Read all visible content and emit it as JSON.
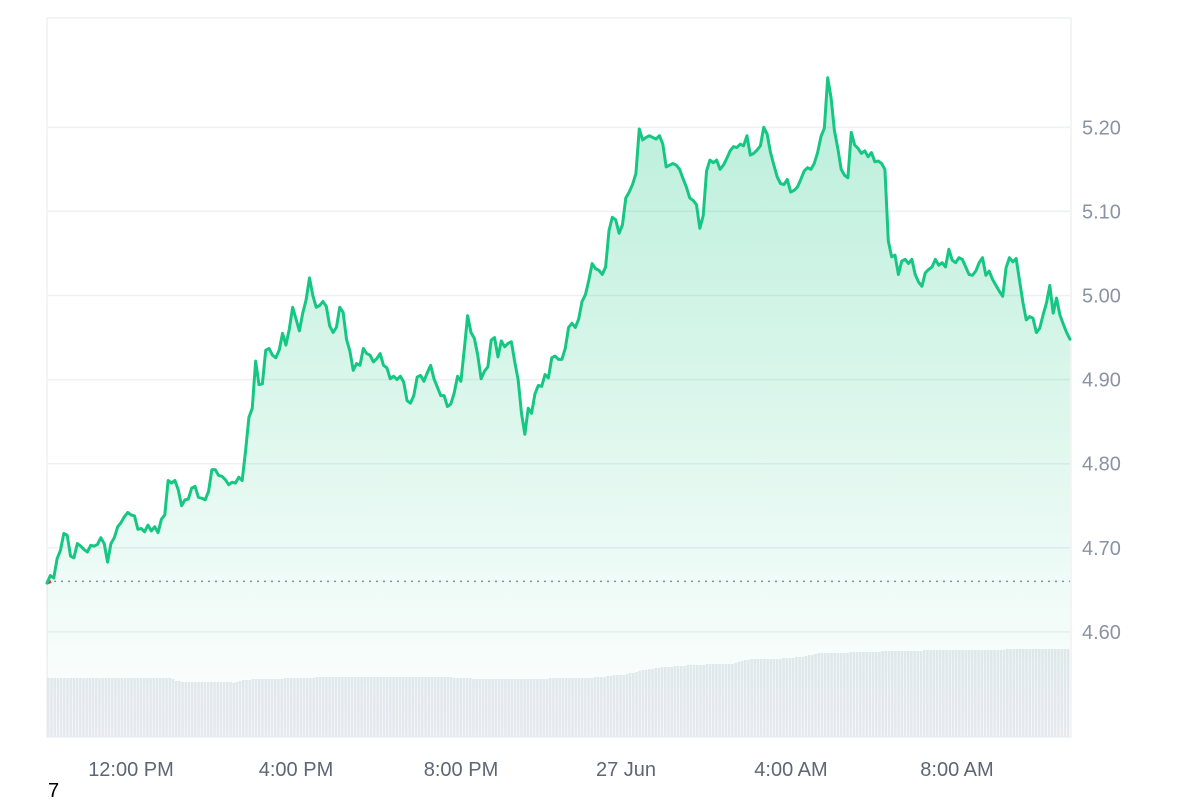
{
  "chart_data": {
    "type": "area",
    "x_tick_labels": [
      "12:00 PM",
      "4:00 PM",
      "8:00 PM",
      "27 Jun",
      "4:00 AM",
      "8:00 AM"
    ],
    "y_tick_labels": [
      "4.60",
      "4.70",
      "4.80",
      "4.90",
      "5.00",
      "5.10",
      "5.20"
    ],
    "ylim": [
      4.475,
      5.33
    ],
    "baseline": 4.66,
    "grid": true,
    "colors": {
      "line": "#16c784",
      "fill": "#16c784",
      "down": "#ea3943",
      "volume": "#e6e9ee",
      "grid": "#eef0f3",
      "baseline": "#8a8f98"
    },
    "price_series": {
      "name": "",
      "values": [
        4.658,
        4.667,
        4.664,
        4.687,
        4.697,
        4.717,
        4.715,
        4.69,
        4.688,
        4.705,
        4.702,
        4.698,
        4.695,
        4.703,
        4.702,
        4.704,
        4.712,
        4.705,
        4.683,
        4.705,
        4.712,
        4.725,
        4.73,
        4.737,
        4.742,
        4.739,
        4.738,
        4.722,
        4.723,
        4.719,
        4.727,
        4.72,
        4.725,
        4.718,
        4.734,
        4.739,
        4.78,
        4.777,
        4.78,
        4.769,
        4.75,
        4.757,
        4.758,
        4.771,
        4.773,
        4.76,
        4.759,
        4.757,
        4.767,
        4.793,
        4.793,
        4.786,
        4.785,
        4.781,
        4.775,
        4.778,
        4.777,
        4.784,
        4.78,
        4.815,
        4.855,
        4.866,
        4.922,
        4.894,
        4.895,
        4.935,
        4.937,
        4.929,
        4.926,
        4.935,
        4.955,
        4.941,
        4.96,
        4.986,
        4.972,
        4.958,
        4.979,
        4.995,
        5.021,
        5.0,
        4.986,
        4.988,
        4.993,
        4.987,
        4.964,
        4.956,
        4.962,
        4.986,
        4.98,
        4.948,
        4.934,
        4.911,
        4.919,
        4.917,
        4.937,
        4.931,
        4.929,
        4.921,
        4.925,
        4.931,
        4.917,
        4.914,
        4.901,
        4.904,
        4.9,
        4.904,
        4.897,
        4.875,
        4.872,
        4.881,
        4.903,
        4.905,
        4.898,
        4.908,
        4.917,
        4.901,
        4.891,
        4.881,
        4.881,
        4.868,
        4.871,
        4.884,
        4.904,
        4.898,
        4.936,
        4.976,
        4.956,
        4.949,
        4.929,
        4.901,
        4.91,
        4.915,
        4.947,
        4.95,
        4.927,
        4.946,
        4.939,
        4.943,
        4.945,
        4.921,
        4.9,
        4.86,
        4.835,
        4.866,
        4.86,
        4.883,
        4.893,
        4.892,
        4.906,
        4.902,
        4.926,
        4.928,
        4.924,
        4.924,
        4.937,
        4.962,
        4.967,
        4.962,
        4.972,
        4.993,
        5.001,
        5.018,
        5.038,
        5.032,
        5.03,
        5.025,
        5.034,
        5.077,
        5.093,
        5.09,
        5.074,
        5.084,
        5.116,
        5.123,
        5.132,
        5.145,
        5.198,
        5.185,
        5.188,
        5.19,
        5.188,
        5.186,
        5.19,
        5.18,
        5.153,
        5.155,
        5.157,
        5.155,
        5.15,
        5.139,
        5.129,
        5.116,
        5.113,
        5.108,
        5.08,
        5.095,
        5.148,
        5.161,
        5.158,
        5.161,
        5.15,
        5.155,
        5.163,
        5.172,
        5.177,
        5.176,
        5.18,
        5.178,
        5.19,
        5.167,
        5.169,
        5.173,
        5.178,
        5.2,
        5.192,
        5.17,
        5.155,
        5.141,
        5.133,
        5.132,
        5.138,
        5.123,
        5.125,
        5.129,
        5.138,
        5.148,
        5.152,
        5.15,
        5.157,
        5.17,
        5.189,
        5.199,
        5.259,
        5.235,
        5.196,
        5.175,
        5.15,
        5.143,
        5.14,
        5.194,
        5.179,
        5.175,
        5.169,
        5.172,
        5.165,
        5.17,
        5.159,
        5.16,
        5.157,
        5.15,
        5.065,
        5.046,
        5.048,
        5.025,
        5.041,
        5.043,
        5.038,
        5.043,
        5.025,
        5.016,
        5.011,
        5.027,
        5.031,
        5.034,
        5.043,
        5.036,
        5.039,
        5.034,
        5.055,
        5.042,
        5.039,
        5.045,
        5.043,
        5.034,
        5.025,
        5.024,
        5.029,
        5.039,
        5.045,
        5.024,
        5.029,
        5.019,
        5.012,
        5.005,
        4.999,
        5.033,
        5.045,
        5.04,
        5.044,
        5.018,
        4.992,
        4.971,
        4.975,
        4.973,
        4.956,
        4.961,
        4.977,
        4.991,
        5.012,
        4.979,
        4.997,
        4.977,
        4.966,
        4.956,
        4.948
      ]
    },
    "volume_series": {
      "name": "",
      "values": [
        0.59,
        0.59,
        0.59,
        0.59,
        0.59,
        0.59,
        0.59,
        0.59,
        0.59,
        0.59,
        0.59,
        0.59,
        0.59,
        0.59,
        0.59,
        0.59,
        0.59,
        0.59,
        0.59,
        0.59,
        0.59,
        0.59,
        0.59,
        0.59,
        0.59,
        0.59,
        0.59,
        0.59,
        0.59,
        0.59,
        0.59,
        0.59,
        0.59,
        0.59,
        0.59,
        0.59,
        0.59,
        0.59,
        0.59,
        0.58,
        0.56,
        0.56,
        0.55,
        0.55,
        0.55,
        0.55,
        0.55,
        0.55,
        0.55,
        0.55,
        0.55,
        0.55,
        0.55,
        0.55,
        0.55,
        0.55,
        0.55,
        0.55,
        0.54,
        0.55,
        0.56,
        0.57,
        0.57,
        0.57,
        0.58,
        0.58,
        0.58,
        0.58,
        0.58,
        0.58,
        0.58,
        0.58,
        0.58,
        0.58,
        0.59,
        0.59,
        0.59,
        0.59,
        0.59,
        0.59,
        0.59,
        0.59,
        0.59,
        0.59,
        0.6,
        0.6,
        0.6,
        0.6,
        0.6,
        0.6,
        0.6,
        0.6,
        0.6,
        0.6,
        0.6,
        0.6,
        0.6,
        0.6,
        0.6,
        0.6,
        0.6,
        0.6,
        0.6,
        0.6,
        0.6,
        0.6,
        0.6,
        0.6,
        0.6,
        0.6,
        0.6,
        0.6,
        0.6,
        0.6,
        0.6,
        0.6,
        0.6,
        0.6,
        0.6,
        0.6,
        0.6,
        0.6,
        0.6,
        0.6,
        0.6,
        0.6,
        0.6,
        0.59,
        0.59,
        0.59,
        0.59,
        0.59,
        0.59,
        0.58,
        0.58,
        0.58,
        0.58,
        0.58,
        0.58,
        0.58,
        0.58,
        0.58,
        0.58,
        0.58,
        0.58,
        0.58,
        0.58,
        0.58,
        0.58,
        0.58,
        0.58,
        0.58,
        0.58,
        0.58,
        0.58,
        0.58,
        0.58,
        0.59,
        0.59,
        0.59,
        0.59,
        0.59,
        0.59,
        0.59,
        0.59,
        0.59,
        0.59,
        0.59,
        0.59,
        0.59,
        0.59,
        0.6,
        0.6,
        0.6,
        0.6,
        0.61,
        0.61,
        0.62,
        0.62,
        0.62,
        0.62,
        0.63,
        0.64,
        0.64,
        0.65,
        0.66,
        0.67,
        0.67,
        0.68,
        0.68,
        0.69,
        0.69,
        0.7,
        0.7,
        0.7,
        0.7,
        0.71,
        0.71,
        0.71,
        0.71,
        0.72,
        0.72,
        0.72,
        0.72,
        0.72,
        0.72,
        0.73,
        0.73,
        0.73,
        0.73,
        0.73,
        0.73,
        0.73,
        0.73,
        0.73,
        0.74,
        0.75,
        0.76,
        0.77,
        0.77,
        0.78,
        0.78,
        0.78,
        0.78,
        0.78,
        0.78,
        0.78,
        0.78,
        0.78,
        0.78,
        0.79,
        0.79,
        0.79,
        0.79,
        0.8,
        0.8,
        0.8,
        0.81,
        0.82,
        0.82,
        0.83,
        0.84,
        0.84,
        0.84,
        0.84,
        0.84,
        0.84,
        0.84,
        0.84,
        0.84,
        0.84,
        0.85,
        0.85,
        0.85,
        0.85,
        0.85,
        0.85,
        0.85,
        0.85,
        0.85,
        0.85,
        0.86,
        0.86,
        0.86,
        0.86,
        0.86,
        0.86,
        0.86,
        0.86,
        0.86,
        0.86,
        0.86,
        0.86,
        0.86,
        0.87,
        0.87,
        0.87,
        0.87,
        0.87,
        0.87,
        0.87,
        0.87,
        0.87,
        0.87,
        0.87,
        0.87,
        0.87,
        0.87,
        0.87,
        0.87,
        0.87,
        0.87,
        0.87,
        0.87,
        0.87,
        0.87,
        0.87,
        0.87,
        0.87,
        0.87,
        0.88,
        0.88,
        0.88,
        0.88,
        0.88,
        0.88,
        0.88,
        0.88,
        0.88,
        0.88,
        0.88,
        0.88,
        0.88,
        0.88,
        0.88,
        0.88,
        0.88,
        0.88,
        0.88,
        0.88
      ]
    }
  },
  "footnote": "7"
}
